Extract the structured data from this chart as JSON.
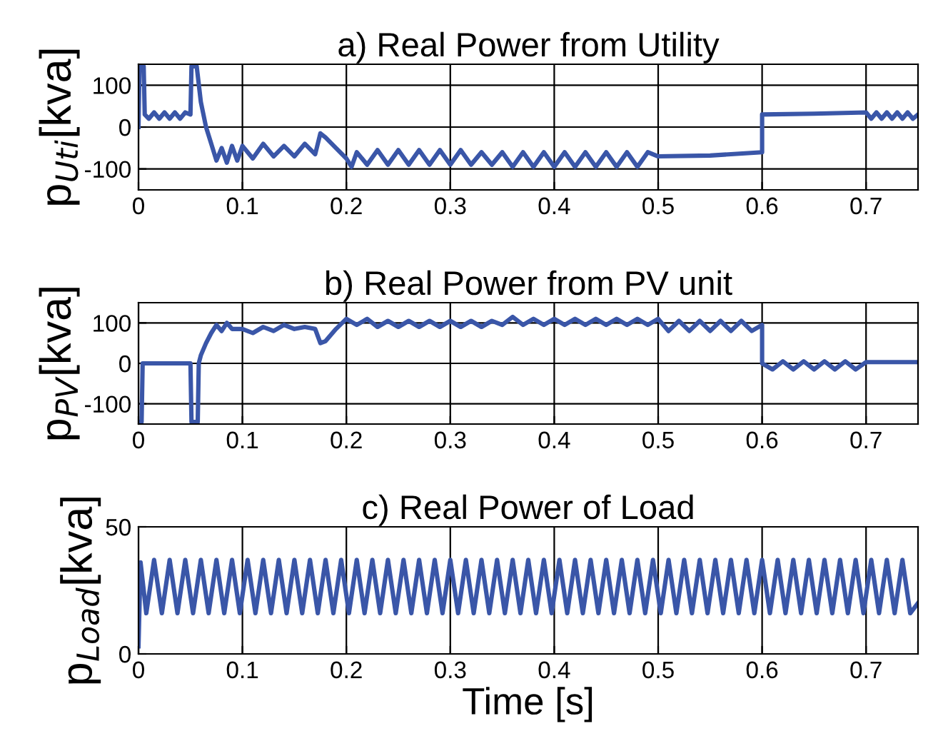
{
  "chart_data": [
    {
      "type": "line",
      "title": "a) Real Power from Utility",
      "ylabel": "p$_{Uti}$[kva]",
      "xlim": [
        0,
        0.75
      ],
      "xticks": [
        0,
        0.1,
        0.2,
        0.3,
        0.4,
        0.5,
        0.6,
        0.7
      ],
      "ylim": [
        -150,
        150
      ],
      "yticks": [
        -100,
        0,
        100
      ],
      "grid": true,
      "series": [
        {
          "color": "#3a56a8",
          "x": [
            0,
            0.001,
            0.005,
            0.006,
            0.01,
            0.015,
            0.02,
            0.025,
            0.03,
            0.035,
            0.04,
            0.045,
            0.05,
            0.051,
            0.056,
            0.06,
            0.065,
            0.07,
            0.075,
            0.08,
            0.085,
            0.09,
            0.095,
            0.1,
            0.11,
            0.12,
            0.13,
            0.14,
            0.15,
            0.16,
            0.17,
            0.175,
            0.18,
            0.19,
            0.2,
            0.205,
            0.21,
            0.22,
            0.23,
            0.24,
            0.25,
            0.26,
            0.27,
            0.28,
            0.29,
            0.3,
            0.31,
            0.32,
            0.33,
            0.34,
            0.35,
            0.36,
            0.37,
            0.38,
            0.39,
            0.4,
            0.41,
            0.42,
            0.43,
            0.44,
            0.45,
            0.46,
            0.47,
            0.48,
            0.49,
            0.5,
            0.55,
            0.6,
            0.6,
            0.65,
            0.7,
            0.705,
            0.71,
            0.715,
            0.72,
            0.725,
            0.73,
            0.735,
            0.74,
            0.745,
            0.75
          ],
          "values": [
            0,
            145,
            145,
            30,
            20,
            35,
            20,
            35,
            20,
            35,
            20,
            35,
            30,
            145,
            145,
            60,
            0,
            -40,
            -80,
            -50,
            -85,
            -45,
            -80,
            -45,
            -75,
            -40,
            -70,
            -45,
            -70,
            -40,
            -65,
            -15,
            -25,
            -50,
            -75,
            -95,
            -60,
            -90,
            -55,
            -90,
            -55,
            -90,
            -55,
            -90,
            -55,
            -90,
            -55,
            -90,
            -60,
            -90,
            -60,
            -95,
            -60,
            -95,
            -60,
            -95,
            -60,
            -95,
            -60,
            -95,
            -60,
            -95,
            -60,
            -95,
            -60,
            -70,
            -68,
            -60,
            30,
            32,
            35,
            20,
            35,
            20,
            35,
            20,
            35,
            20,
            35,
            20,
            30
          ]
        }
      ]
    },
    {
      "type": "line",
      "title": "b) Real Power from PV unit",
      "ylabel": "p$_{PV}$[kva]",
      "xlim": [
        0,
        0.75
      ],
      "xticks": [
        0,
        0.1,
        0.2,
        0.3,
        0.4,
        0.5,
        0.6,
        0.7
      ],
      "ylim": [
        -150,
        150
      ],
      "yticks": [
        -100,
        0,
        100
      ],
      "grid": true,
      "series": [
        {
          "color": "#3a56a8",
          "x": [
            0,
            0.003,
            0.004,
            0.05,
            0.051,
            0.057,
            0.058,
            0.06,
            0.065,
            0.07,
            0.075,
            0.08,
            0.085,
            0.09,
            0.1,
            0.11,
            0.12,
            0.13,
            0.14,
            0.15,
            0.16,
            0.17,
            0.175,
            0.18,
            0.19,
            0.2,
            0.21,
            0.22,
            0.23,
            0.24,
            0.25,
            0.26,
            0.27,
            0.28,
            0.29,
            0.3,
            0.31,
            0.32,
            0.33,
            0.34,
            0.35,
            0.36,
            0.37,
            0.38,
            0.39,
            0.4,
            0.41,
            0.42,
            0.43,
            0.44,
            0.45,
            0.46,
            0.47,
            0.48,
            0.49,
            0.5,
            0.51,
            0.52,
            0.53,
            0.54,
            0.55,
            0.56,
            0.57,
            0.58,
            0.59,
            0.6,
            0.6,
            0.61,
            0.62,
            0.63,
            0.64,
            0.65,
            0.66,
            0.67,
            0.68,
            0.69,
            0.7,
            0.75
          ],
          "values": [
            -145,
            -145,
            0,
            0,
            -145,
            -145,
            0,
            20,
            50,
            75,
            95,
            80,
            100,
            85,
            85,
            75,
            90,
            80,
            95,
            85,
            90,
            85,
            50,
            55,
            85,
            110,
            95,
            110,
            90,
            105,
            90,
            105,
            90,
            105,
            90,
            105,
            90,
            105,
            90,
            105,
            95,
            115,
            95,
            110,
            95,
            110,
            95,
            110,
            95,
            110,
            95,
            110,
            95,
            110,
            95,
            110,
            80,
            105,
            80,
            105,
            80,
            105,
            80,
            105,
            80,
            95,
            0,
            -15,
            5,
            -15,
            5,
            -15,
            5,
            -15,
            5,
            -15,
            3,
            3
          ]
        }
      ]
    },
    {
      "type": "line",
      "title": "c) Real Power of Load",
      "ylabel": "p$_{Load}$[kva]",
      "xlabel": "Time [s]",
      "xlim": [
        0,
        0.75
      ],
      "xticks": [
        0,
        0.1,
        0.2,
        0.3,
        0.4,
        0.5,
        0.6,
        0.7
      ],
      "ylim": [
        0,
        50
      ],
      "yticks": [
        0,
        50
      ],
      "grid": true,
      "series": [
        {
          "color": "#3a56a8",
          "x": [
            0,
            0.002,
            0.0075,
            0.015,
            0.0225,
            0.03,
            0.0375,
            0.045,
            0.0525,
            0.06,
            0.0675,
            0.075,
            0.0825,
            0.09,
            0.0975,
            0.105,
            0.1125,
            0.12,
            0.1275,
            0.135,
            0.1425,
            0.15,
            0.1575,
            0.165,
            0.1725,
            0.18,
            0.1875,
            0.195,
            0.2025,
            0.21,
            0.2175,
            0.225,
            0.2325,
            0.24,
            0.2475,
            0.255,
            0.2625,
            0.27,
            0.2775,
            0.285,
            0.2925,
            0.3,
            0.3075,
            0.315,
            0.3225,
            0.33,
            0.3375,
            0.345,
            0.3525,
            0.36,
            0.3675,
            0.375,
            0.3825,
            0.39,
            0.3975,
            0.405,
            0.4125,
            0.42,
            0.4275,
            0.435,
            0.4425,
            0.45,
            0.4575,
            0.465,
            0.4725,
            0.48,
            0.4875,
            0.495,
            0.5025,
            0.51,
            0.5175,
            0.525,
            0.5325,
            0.54,
            0.5475,
            0.555,
            0.5625,
            0.57,
            0.5775,
            0.585,
            0.5925,
            0.6,
            0.6075,
            0.615,
            0.6225,
            0.63,
            0.6375,
            0.645,
            0.6525,
            0.66,
            0.6675,
            0.675,
            0.6825,
            0.69,
            0.6975,
            0.705,
            0.7125,
            0.72,
            0.7275,
            0.735,
            0.7425,
            0.75
          ],
          "values": [
            3,
            36,
            16,
            37,
            16,
            37,
            16,
            37,
            16,
            37,
            16,
            37,
            16,
            37,
            16,
            37,
            16,
            37,
            16,
            37,
            16,
            37,
            16,
            37,
            16,
            37,
            16,
            37,
            16,
            37,
            16,
            37,
            16,
            37,
            16,
            37,
            16,
            37,
            16,
            37,
            16,
            37,
            16,
            37,
            16,
            37,
            16,
            37,
            16,
            37,
            16,
            37,
            16,
            37,
            16,
            37,
            16,
            37,
            16,
            37,
            16,
            37,
            16,
            37,
            16,
            37,
            16,
            37,
            16,
            37,
            16,
            37,
            16,
            37,
            16,
            37,
            16,
            37,
            16,
            37,
            16,
            37,
            16,
            37,
            16,
            37,
            16,
            37,
            16,
            37,
            16,
            37,
            16,
            37,
            16,
            37,
            16,
            37,
            16,
            37,
            16,
            20
          ]
        }
      ]
    }
  ]
}
